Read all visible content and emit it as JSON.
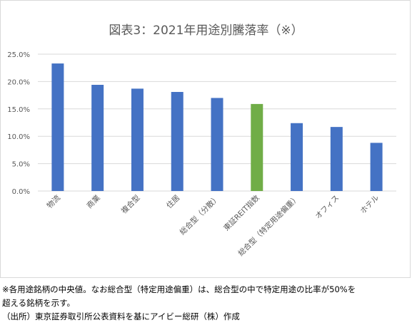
{
  "chart_data": {
    "type": "bar",
    "title": "図表3：2021年用途別騰落率（※）",
    "xlabel": "",
    "ylabel": "",
    "categories": [
      "物流",
      "商業",
      "複合型",
      "住居",
      "総合型（分散）",
      "東証REIT指数",
      "総合型（特定用途偏重）",
      "オフィス",
      "ホテル"
    ],
    "values": [
      23.3,
      19.4,
      18.7,
      18.1,
      17.0,
      15.9,
      12.4,
      11.7,
      8.8
    ],
    "ylim": [
      0,
      25
    ],
    "yticks": [
      "0.0%",
      "5.0%",
      "10.0%",
      "15.0%",
      "20.0%",
      "25.0%"
    ],
    "grid": true,
    "legend": "none",
    "colors": {
      "bar": "#4472c4",
      "highlight": "#70ad47"
    },
    "highlight_index": 5
  },
  "notes": {
    "line1": "※各用途銘柄の中央値。なお総合型（特定用途偏重）は、総合型の中で特定用途の比率が50%を",
    "line2": "超える銘柄を示す。",
    "line3": "（出所）東京証券取引所公表資料を基にアイビー総研（株）作成"
  }
}
